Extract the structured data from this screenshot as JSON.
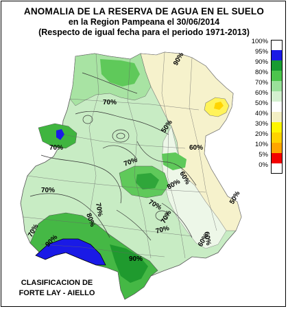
{
  "title": {
    "line1": "ANOMALIA DE LA RESERVA DE AGUA EN EL SUELO",
    "line2": "en la Region Pampeana el 30/06/2014",
    "line3": "(Respecto de igual fecha para el periodo 1971-2013)"
  },
  "legend": [
    {
      "label": "100%",
      "color": "#ffffff"
    },
    {
      "label": "95%",
      "color": "#1a1ae6"
    },
    {
      "label": "90%",
      "color": "#199b32"
    },
    {
      "label": "80%",
      "color": "#4cc44c"
    },
    {
      "label": "70%",
      "color": "#9ae09a"
    },
    {
      "label": "60%",
      "color": "#d4f0d0"
    },
    {
      "label": "50%",
      "color": "#ffffff"
    },
    {
      "label": "40%",
      "color": "#f3efc4"
    },
    {
      "label": "30%",
      "color": "#fff600"
    },
    {
      "label": "20%",
      "color": "#ffd200"
    },
    {
      "label": "10%",
      "color": "#ffa500"
    },
    {
      "label": "5%",
      "color": "#f20000"
    },
    {
      "label": "0%",
      "color": "#ffffff"
    }
  ],
  "map_labels": [
    "90%",
    "70%",
    "50%",
    "70%",
    "60%",
    "70%",
    "70%",
    "60%",
    "80%",
    "70%",
    "80%",
    "70%",
    "70%",
    "50%",
    "60%",
    "70%",
    "90%",
    "90%",
    "70%",
    "60%"
  ],
  "credit": {
    "line1": "CLASIFICACION DE",
    "line2": "FORTE LAY - AIELLO"
  }
}
